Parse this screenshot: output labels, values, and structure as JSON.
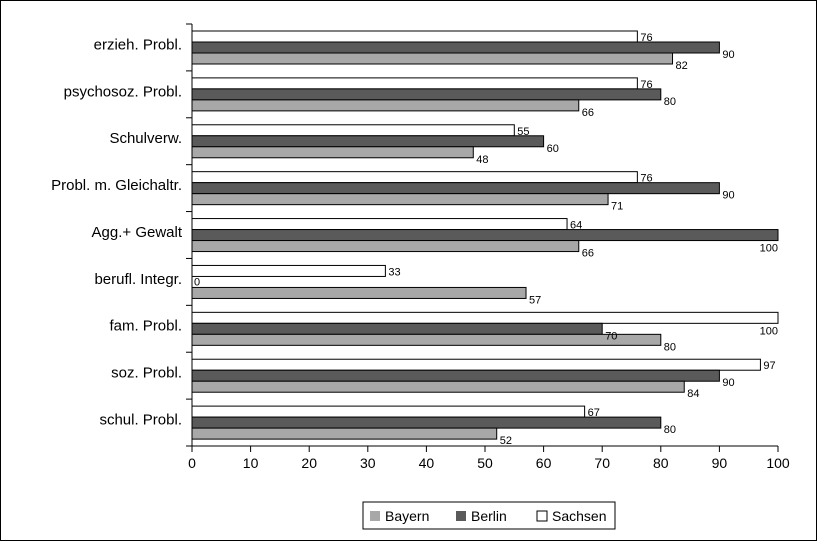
{
  "chart_data": {
    "type": "bar",
    "orientation": "horizontal",
    "title": "",
    "xlabel": "",
    "ylabel": "",
    "xlim": [
      0,
      100
    ],
    "x_ticks": [
      0,
      10,
      20,
      30,
      40,
      50,
      60,
      70,
      80,
      90,
      100
    ],
    "grid": false,
    "legend_position": "bottom",
    "categories": [
      "erzieh. Probl.",
      "psychosoz. Probl.",
      "Schulverw.",
      "Probl. m. Gleichaltr.",
      "Agg.+ Gewalt",
      "berufl. Integr.",
      "fam. Probl.",
      "soz. Probl.",
      "schul. Probl."
    ],
    "series": [
      {
        "name": "Sachsen",
        "color": "#ffffff",
        "values": [
          76,
          76,
          55,
          76,
          64,
          33,
          100,
          97,
          67
        ]
      },
      {
        "name": "Berlin",
        "color": "#5a5a5a",
        "values": [
          90,
          80,
          60,
          90,
          100,
          0,
          70,
          90,
          80
        ]
      },
      {
        "name": "Bayern",
        "color": "#a8a8a8",
        "values": [
          82,
          66,
          48,
          71,
          66,
          57,
          80,
          84,
          52
        ]
      }
    ],
    "legend_order": [
      "Bayern",
      "Berlin",
      "Sachsen"
    ]
  }
}
